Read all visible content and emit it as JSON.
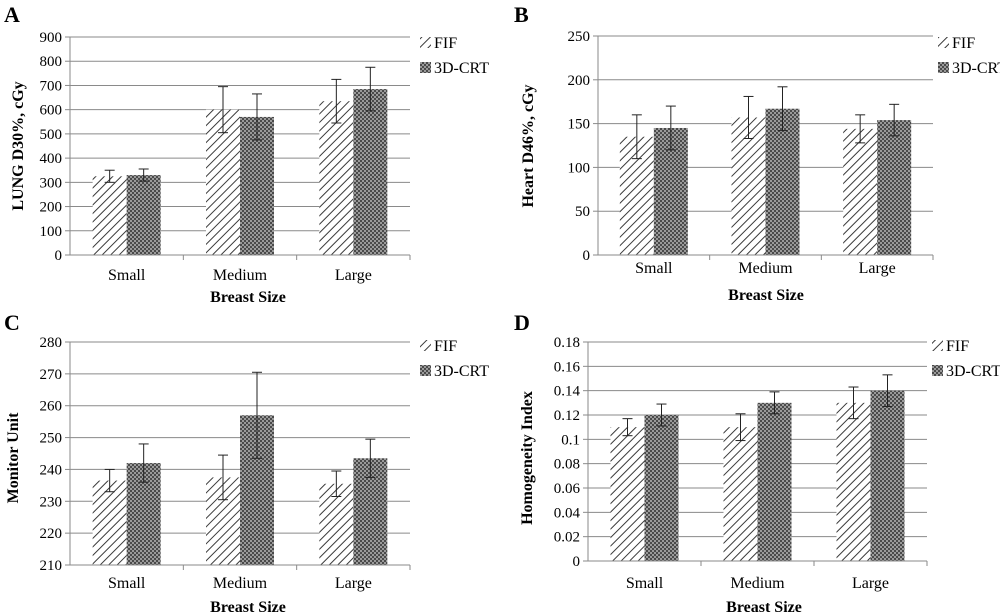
{
  "colors": {
    "grid": "#8a8a8a",
    "bar_stroke": "#444444",
    "error_bar": "#222222"
  },
  "chart_data": [
    {
      "panel_label": "A",
      "type": "bar",
      "ylabel": "LUNG D30%, cGy",
      "xlabel": "Breast Size",
      "categories": [
        "Small",
        "Medium",
        "Large"
      ],
      "ylim": [
        0,
        900
      ],
      "yticks": [
        0,
        100,
        200,
        300,
        400,
        500,
        600,
        700,
        800,
        900
      ],
      "ytick_labels": [
        "0",
        "100",
        "200",
        "300",
        "400",
        "500",
        "600",
        "700",
        "800",
        "900"
      ],
      "grid": true,
      "legend_position": "right",
      "series": [
        {
          "name": "FIF",
          "pattern": "diagonal-hatch",
          "values": [
            325,
            600,
            635
          ],
          "error": [
            25,
            95,
            90
          ]
        },
        {
          "name": "3D-CRT",
          "pattern": "crosshatch",
          "values": [
            330,
            570,
            685
          ],
          "error": [
            25,
            95,
            90
          ]
        }
      ]
    },
    {
      "panel_label": "B",
      "type": "bar",
      "ylabel": "Heart D46%, cGy",
      "xlabel": "Breast Size",
      "categories": [
        "Small",
        "Medium",
        "Large"
      ],
      "ylim": [
        0,
        250
      ],
      "yticks": [
        0,
        50,
        100,
        150,
        200,
        250
      ],
      "ytick_labels": [
        "0",
        "50",
        "100",
        "150",
        "200",
        "250"
      ],
      "grid": true,
      "legend_position": "right",
      "series": [
        {
          "name": "FIF",
          "pattern": "diagonal-hatch",
          "values": [
            135,
            157,
            144
          ],
          "error": [
            25,
            24,
            16
          ]
        },
        {
          "name": "3D-CRT",
          "pattern": "crosshatch",
          "values": [
            145,
            167,
            154
          ],
          "error": [
            25,
            25,
            18
          ]
        }
      ]
    },
    {
      "panel_label": "C",
      "type": "bar",
      "ylabel": "Monitor Unit",
      "xlabel": "Breast Size",
      "categories": [
        "Small",
        "Medium",
        "Large"
      ],
      "ylim": [
        210,
        280
      ],
      "yticks": [
        210,
        220,
        230,
        240,
        250,
        260,
        270,
        280
      ],
      "ytick_labels": [
        "210",
        "220",
        "230",
        "240",
        "250",
        "260",
        "270",
        "280"
      ],
      "grid": true,
      "legend_position": "right",
      "series": [
        {
          "name": "FIF",
          "pattern": "diagonal-hatch",
          "values": [
            236.5,
            237.5,
            235.5
          ],
          "error": [
            3.5,
            7,
            4
          ]
        },
        {
          "name": "3D-CRT",
          "pattern": "crosshatch",
          "values": [
            242,
            257,
            243.5
          ],
          "error": [
            6,
            13.5,
            6
          ]
        }
      ]
    },
    {
      "panel_label": "D",
      "type": "bar",
      "ylabel": "Homogeneity Index",
      "xlabel": "Breast Size",
      "categories": [
        "Small",
        "Medium",
        "Large"
      ],
      "ylim": [
        0,
        0.18
      ],
      "yticks": [
        0,
        0.02,
        0.04,
        0.06,
        0.08,
        0.1,
        0.12,
        0.14,
        0.16,
        0.18
      ],
      "ytick_labels": [
        "0",
        "0.02",
        "0.04",
        "0.06",
        "0.08",
        "0.1",
        "0.12",
        "0.14",
        "0.16",
        "0.18"
      ],
      "grid": true,
      "legend_position": "right",
      "series": [
        {
          "name": "FIF",
          "pattern": "diagonal-hatch",
          "values": [
            0.11,
            0.11,
            0.13
          ],
          "error": [
            0.007,
            0.011,
            0.013
          ]
        },
        {
          "name": "3D-CRT",
          "pattern": "crosshatch",
          "values": [
            0.12,
            0.13,
            0.14
          ],
          "error": [
            0.009,
            0.009,
            0.013
          ]
        }
      ]
    }
  ]
}
